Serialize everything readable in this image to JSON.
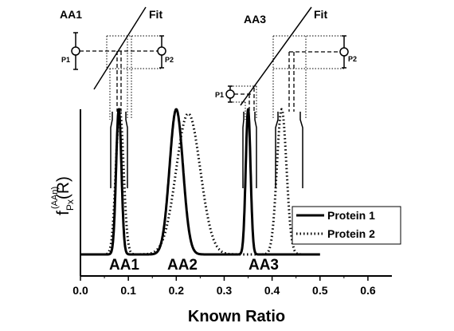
{
  "chart_data": {
    "type": "line",
    "xlabel": "Known Ratio",
    "ylabel_main": "f",
    "ylabel_superscript": "(AAn)",
    "ylabel_subscript": "Px",
    "ylabel_arg": "(R)",
    "xlim": [
      0.0,
      0.65
    ],
    "xticks": [
      0.0,
      0.1,
      0.2,
      0.3,
      0.4,
      0.5,
      0.6
    ],
    "xtick_labels": [
      "0.0",
      "0.1",
      "0.2",
      "0.3",
      "0.4",
      "0.5",
      "0.6"
    ],
    "ylim": [
      0,
      1
    ],
    "grid": false,
    "legend_position": "right",
    "series": [
      {
        "name": "Protein 1",
        "style": "solid",
        "peaks": [
          {
            "label": "AA1",
            "mu": 0.08,
            "sigma": 0.0055,
            "height": 1.0
          },
          {
            "label": "AA2",
            "mu": 0.2,
            "sigma": 0.014,
            "height": 1.0
          },
          {
            "label": "AA3",
            "mu": 0.35,
            "sigma": 0.005,
            "height": 1.0
          }
        ]
      },
      {
        "name": "Protein 2",
        "style": "dotted",
        "peaks": [
          {
            "label": "AA1",
            "mu": 0.082,
            "sigma": 0.008,
            "height": 1.0
          },
          {
            "label": "AA2",
            "mu": 0.225,
            "sigma": 0.025,
            "height": 0.97
          },
          {
            "label": "AA3",
            "mu": 0.42,
            "sigma": 0.01,
            "height": 1.0
          }
        ]
      }
    ],
    "peak_labels": [
      "AA1",
      "AA2",
      "AA3"
    ]
  },
  "insets": {
    "aa1": {
      "title": "AA1",
      "fit_label": "Fit",
      "p1_label": "P1",
      "p2_label": "P2"
    },
    "aa3": {
      "title": "AA3",
      "fit_label": "Fit",
      "p1_label": "P1",
      "p2_label": "P2"
    }
  }
}
